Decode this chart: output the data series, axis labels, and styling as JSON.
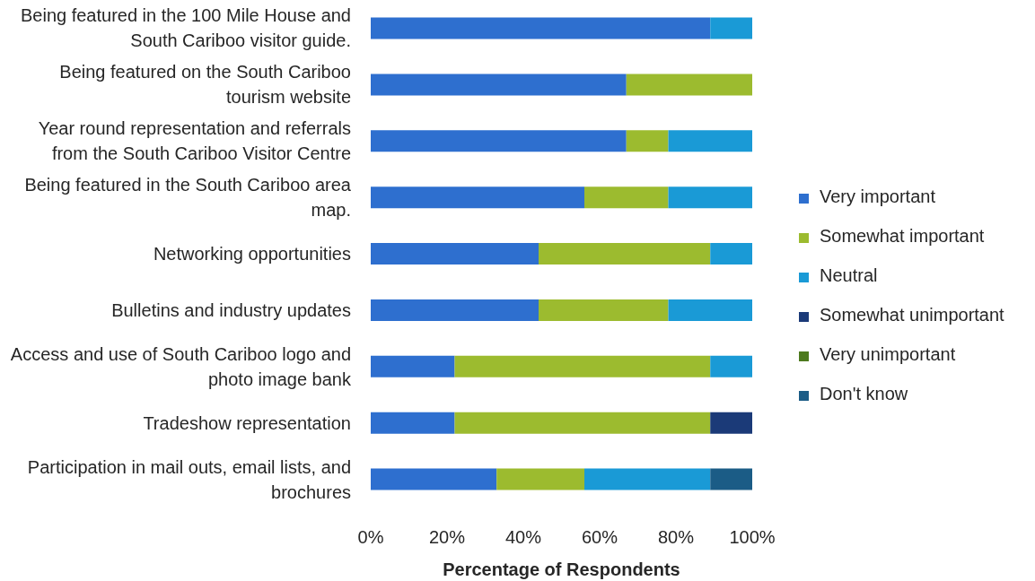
{
  "chart_data": {
    "type": "bar",
    "orientation": "horizontal",
    "stacked": true,
    "categories": [
      "Being featured in the 100 Mile House and South Cariboo visitor guide.",
      "Being featured on the South Cariboo tourism website",
      "Year round representation and referrals from the South Cariboo Visitor Centre",
      "Being featured in the South Cariboo area map.",
      "Networking opportunities",
      "Bulletins and industry updates",
      "Access and use of South Cariboo logo and photo image bank",
      "Tradeshow representation",
      "Participation in mail outs, email lists, and brochures"
    ],
    "series": [
      {
        "name": "Very important",
        "color": "#2e6fcf",
        "values": [
          89,
          67,
          67,
          56,
          44,
          44,
          22,
          22,
          33
        ]
      },
      {
        "name": "Somewhat important",
        "color": "#9cbb2f",
        "values": [
          0,
          33,
          11,
          22,
          45,
          34,
          67,
          67,
          23
        ]
      },
      {
        "name": "Neutral",
        "color": "#1a9ad6",
        "values": [
          11,
          0,
          22,
          22,
          11,
          22,
          11,
          0,
          33
        ]
      },
      {
        "name": "Somewhat unimportant",
        "color": "#1b3a78",
        "values": [
          0,
          0,
          0,
          0,
          0,
          0,
          0,
          11,
          0
        ]
      },
      {
        "name": "Very unimportant",
        "color": "#4d7a1e",
        "values": [
          0,
          0,
          0,
          0,
          0,
          0,
          0,
          0,
          0
        ]
      },
      {
        "name": "Don't know",
        "color": "#1b5c86",
        "values": [
          0,
          0,
          0,
          0,
          0,
          0,
          0,
          0,
          11
        ]
      }
    ],
    "xlabel": "Percentage of Respondents",
    "xlim": [
      0,
      100
    ],
    "xticks": [
      {
        "value": 0,
        "label": "0%"
      },
      {
        "value": 20,
        "label": "20%"
      },
      {
        "value": 40,
        "label": "40%"
      },
      {
        "value": 60,
        "label": "60%"
      },
      {
        "value": 80,
        "label": "80%"
      },
      {
        "value": 100,
        "label": "100%"
      }
    ],
    "legend": "right"
  }
}
